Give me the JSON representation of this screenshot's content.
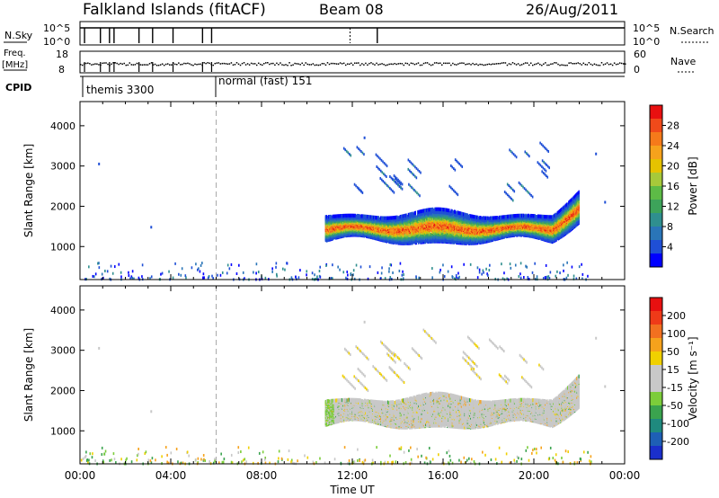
{
  "header": {
    "station": "Falkland Islands (fitACF)",
    "beam": "Beam 08",
    "date": "26/Aug/2011"
  },
  "left_labels": {
    "nsky": "N.Sky",
    "nsky_top": "10^5",
    "nsky_bot": "10^0",
    "freq_line1": "Freq.",
    "freq_line2": "[MHz]",
    "freq_top": "18",
    "freq_bot": "8",
    "cpid": "CPID"
  },
  "right_labels": {
    "nsearch": "N.Search",
    "nsearch_top": "10^5",
    "nsearch_bot": "10^0",
    "nave": "Nave",
    "nave_top": "60",
    "nave_bot": "0"
  },
  "cpid_modes": [
    {
      "label": "themis 3300",
      "start_hr": 0
    },
    {
      "label": "normal (fast) 151",
      "start_hr": 6
    }
  ],
  "x_axis": {
    "label": "Time UT",
    "ticks": [
      "00:00",
      "04:00",
      "08:00",
      "12:00",
      "16:00",
      "20:00",
      "00:00"
    ]
  },
  "colors": {
    "power_colorbar": [
      "#0000ff",
      "#1f4fd6",
      "#2a75b8",
      "#2f8f8f",
      "#3da35a",
      "#5dbb46",
      "#a6c93a",
      "#e6c200",
      "#f6a21c",
      "#f57a1a",
      "#f04a1a",
      "#e81010"
    ],
    "velocity_colorbar": [
      "#1a2fcb",
      "#1e5fb5",
      "#1f8a7e",
      "#3aa34e",
      "#7ccd3a",
      "#c8c8c8",
      "#c8c8c8",
      "#f0d000",
      "#f6a21c",
      "#f27020",
      "#ef3a18",
      "#e81010"
    ]
  },
  "chart_data": [
    {
      "type": "heatmap",
      "title": "",
      "xlabel": "Time UT",
      "ylabel": "Slant Range [km]",
      "xlim_hours": [
        0,
        24
      ],
      "ylim_km": [
        180,
        4600
      ],
      "yticks": [
        "1000",
        "2000",
        "3000",
        "4000"
      ],
      "colorbar": {
        "label": "Power [dB]",
        "ticks": [
          "4",
          "8",
          "12",
          "16",
          "20",
          "24",
          "28"
        ],
        "range": [
          0,
          30
        ]
      },
      "mode_change_hr": 6,
      "echo_regions": [
        {
          "name": "main band",
          "t_start": 10.8,
          "t_end": 22.0,
          "range_lo": 1150,
          "range_hi": 2100,
          "peak_db": 24
        },
        {
          "name": "upper streaks",
          "t_start": 11.5,
          "t_end": 21.5,
          "range_lo": 2300,
          "range_hi": 3600,
          "peak_db": 8
        },
        {
          "name": "near-range clutter",
          "t_start": 0.0,
          "t_end": 22.5,
          "range_lo": 180,
          "range_hi": 600,
          "peak_db": 8
        }
      ]
    },
    {
      "type": "heatmap",
      "title": "",
      "xlabel": "Time UT",
      "ylabel": "Slant Range [km]",
      "xlim_hours": [
        0,
        24
      ],
      "ylim_km": [
        180,
        4600
      ],
      "yticks": [
        "1000",
        "2000",
        "3000",
        "4000"
      ],
      "colorbar": {
        "label": "Velocity [m s⁻¹]",
        "ticks": [
          "200",
          "100",
          "50",
          "15",
          "-15",
          "-50",
          "-100",
          "-200"
        ],
        "range": [
          -250,
          250
        ]
      },
      "mode_change_hr": 6,
      "echo_regions": [
        {
          "name": "main band",
          "t_start": 10.8,
          "t_end": 22.0,
          "range_lo": 1150,
          "range_hi": 2100,
          "velocity": 0
        },
        {
          "name": "upper streaks",
          "t_start": 11.5,
          "t_end": 21.5,
          "range_lo": 2300,
          "range_hi": 3600,
          "velocity": 0
        },
        {
          "name": "near-range clutter",
          "t_start": 0.0,
          "t_end": 22.5,
          "range_lo": 180,
          "range_hi": 600,
          "velocity": 30
        }
      ]
    }
  ]
}
